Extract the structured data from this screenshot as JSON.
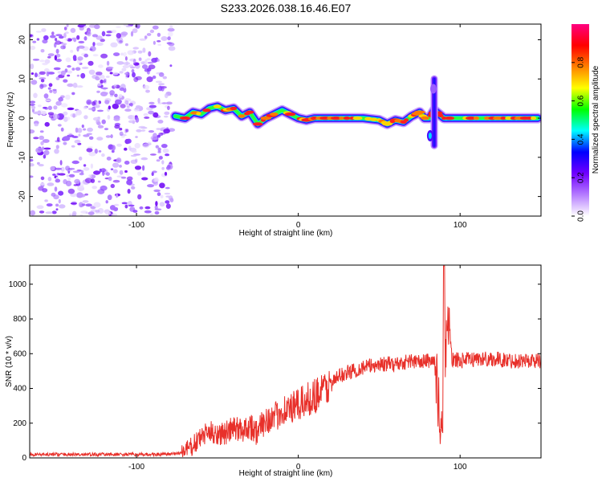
{
  "title": "S233.2026.038.16.46.E07",
  "chart_data": [
    {
      "type": "heatmap",
      "title": "S233.2026.038.16.46.E07",
      "xlabel": "Height of straight line (km)",
      "ylabel": "Frequency (Hz)",
      "xlim": [
        -166,
        150
      ],
      "ylim": [
        -25,
        24
      ],
      "xticks": [
        -100,
        0,
        100
      ],
      "yticks": [
        -20,
        -10,
        0,
        10,
        20
      ],
      "colorbar": {
        "label": "Normalized spectral amplitude",
        "range": [
          0,
          1
        ],
        "ticks": [
          0,
          0.2,
          0.4,
          0.6,
          0.8
        ],
        "colors": [
          "#ffffff",
          "#b57cff",
          "#7000ff",
          "#0000ff",
          "#00ffff",
          "#00ff00",
          "#ffff00",
          "#ff8000",
          "#ff0000",
          "#ff0080"
        ]
      },
      "noise_region_x": [
        -166,
        -76
      ],
      "signal_start_x": -76,
      "ridge": {
        "x": [
          -76,
          -70,
          -65,
          -60,
          -55,
          -50,
          -45,
          -40,
          -35,
          -30,
          -25,
          -20,
          -15,
          -10,
          -5,
          0,
          5,
          10,
          20,
          30,
          40,
          50,
          55,
          60,
          65,
          70,
          75,
          78,
          81,
          84,
          90,
          100,
          110,
          120,
          130,
          140,
          148
        ],
        "y": [
          0.5,
          0,
          1.5,
          1,
          2.5,
          3,
          2,
          2.5,
          0.5,
          1.5,
          -1.5,
          0,
          1,
          2,
          1,
          0,
          -0.5,
          0,
          0,
          0,
          0,
          -0.5,
          -1.5,
          -0.5,
          -1,
          0.5,
          1.5,
          0,
          0,
          2,
          0,
          0,
          0,
          0,
          0,
          0,
          0
        ]
      },
      "spike": {
        "x": 84,
        "y_range": [
          -7,
          10
        ]
      }
    },
    {
      "type": "line",
      "xlabel": "Height of straight line (km)",
      "ylabel": "SNR (10 * v/v)",
      "xlim": [
        -166,
        150
      ],
      "ylim": [
        0,
        1110
      ],
      "xticks": [
        -100,
        0,
        100
      ],
      "yticks": [
        0,
        200,
        400,
        600,
        800,
        1000
      ],
      "series": [
        {
          "name": "SNR",
          "color": "#e8302a",
          "x": [
            -166,
            -140,
            -110,
            -80,
            -72,
            -65,
            -60,
            -55,
            -50,
            -45,
            -40,
            -35,
            -30,
            -25,
            -20,
            -15,
            -10,
            -5,
            0,
            5,
            10,
            15,
            20,
            25,
            30,
            40,
            50,
            60,
            70,
            75,
            80,
            84,
            86,
            88,
            89,
            90,
            91,
            92,
            95,
            100,
            110,
            120,
            130,
            140,
            150
          ],
          "y": [
            20,
            20,
            20,
            20,
            30,
            70,
            120,
            150,
            140,
            140,
            170,
            160,
            190,
            140,
            230,
            220,
            280,
            280,
            300,
            330,
            360,
            390,
            420,
            470,
            490,
            520,
            540,
            540,
            560,
            550,
            560,
            560,
            400,
            150,
            70,
            900,
            600,
            800,
            570,
            560,
            570,
            570,
            560,
            560,
            560
          ]
        }
      ]
    }
  ]
}
